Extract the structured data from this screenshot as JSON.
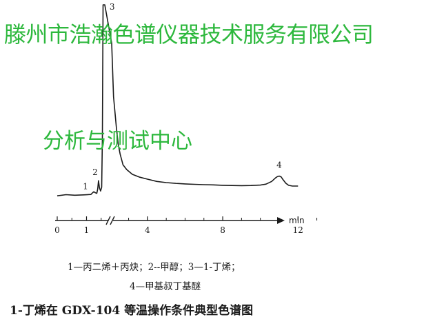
{
  "watermark": {
    "line1": "滕州市浩瀚色谱仪器技术服务有限公司",
    "line2": "分析与测试中心",
    "color": "#2db83d"
  },
  "caption": {
    "legend_line1": "1—丙二烯＋丙炔；2--甲醇；3—1-丁烯；",
    "legend_line2": "4—甲基叔丁基醚",
    "title": "1-丁烯在 GDX-104 等温操作条件典型色谱图"
  },
  "chart_data": {
    "type": "line",
    "title": "1-丁烯在 GDX-104 等温操作条件典型色谱图",
    "xlabel": "min",
    "ylabel": "",
    "grid": false,
    "x_ticks": [
      0,
      1,
      4,
      8,
      12
    ],
    "x_tick_labels": [
      "0",
      "1",
      "4",
      "8",
      "12"
    ],
    "axis_break_after": 1,
    "x_segments": [
      {
        "range": [
          0,
          1.5
        ],
        "note": "before break"
      },
      {
        "range": [
          2.1,
          13.5
        ],
        "note": "after break"
      }
    ],
    "xlim": [
      0,
      13.5
    ],
    "series": [
      {
        "values_description": "detector signal (relative)",
        "x": [
          0,
          0.3,
          0.6,
          0.9,
          1.15,
          1.2,
          1.25,
          1.3,
          1.35,
          1.38,
          1.41,
          1.44,
          1.48,
          1.52,
          1.56,
          1.6,
          1.64,
          1.7,
          2.1,
          2.2,
          2.35,
          2.45,
          2.55,
          2.7,
          2.9,
          3.2,
          3.6,
          4.0,
          4.5,
          5.0,
          5.5,
          6.0,
          6.5,
          7.0,
          7.5,
          8.0,
          8.5,
          9.0,
          9.5,
          10.0,
          10.3,
          10.6,
          10.8,
          10.9,
          11.0,
          11.1,
          11.2,
          11.35,
          11.5,
          11.7,
          12.0
        ],
        "y": [
          0.3,
          0.9,
          0.6,
          0.8,
          1.0,
          1.8,
          2.4,
          1.9,
          1.6,
          3.8,
          8.2,
          4.6,
          2.8,
          4.8,
          30,
          100,
          100,
          100,
          80,
          52,
          36,
          27,
          22,
          16.5,
          14,
          11.5,
          10,
          9,
          7.8,
          7.2,
          6.8,
          6.5,
          6.3,
          6.1,
          6.0,
          5.8,
          5.7,
          5.6,
          5.7,
          5.9,
          6.4,
          7.8,
          9.6,
          10.3,
          10.6,
          10.2,
          8.8,
          6.9,
          5.8,
          5.4,
          5.4
        ]
      }
    ],
    "peaks": [
      {
        "label": "1",
        "x": 1.25,
        "y": 2.4
      },
      {
        "label": "2",
        "x": 1.41,
        "y": 8.2
      },
      {
        "label": "3",
        "x": 1.65,
        "y": 100
      },
      {
        "label": "4",
        "x": 11.0,
        "y": 10.6
      }
    ]
  }
}
